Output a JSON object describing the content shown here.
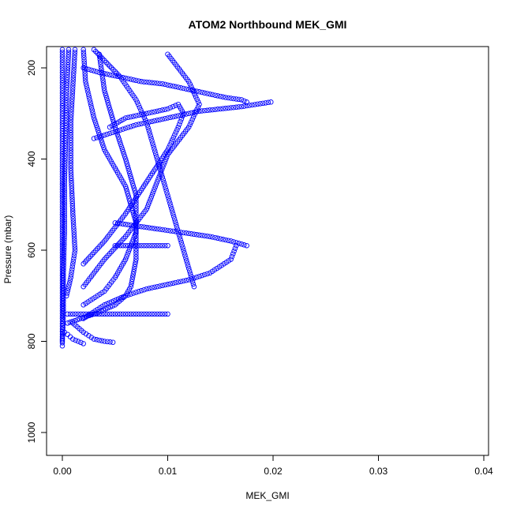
{
  "chart_data": {
    "type": "scatter",
    "title": "ATOM2 Northbound MEK_GMI",
    "xlabel": "MEK_GMI",
    "ylabel": "Pressure (mbar)",
    "xlim": [
      0.0,
      0.04
    ],
    "ylim": [
      1045,
      160
    ],
    "y_inverted": true,
    "x_ticks": [
      0.0,
      0.01,
      0.02,
      0.03,
      0.04
    ],
    "x_tick_labels": [
      "0.00",
      "0.01",
      "0.02",
      "0.03",
      "0.04"
    ],
    "y_ticks": [
      200,
      400,
      600,
      800,
      1000
    ],
    "y_tick_labels": [
      "200",
      "400",
      "600",
      "800",
      "1000"
    ],
    "grid": false,
    "legend": "none",
    "marker": "open-circle",
    "color": "#0000ff",
    "series": [
      {
        "x": [
          0.0,
          0.0,
          0.0,
          0.0,
          0.0,
          0.0,
          0.0,
          0.0,
          0.0,
          0.0
        ],
        "y": [
          160,
          250,
          350,
          450,
          550,
          650,
          700,
          750,
          790,
          810
        ]
      },
      {
        "x": [
          0.0006,
          0.0004,
          0.0003,
          0.0002,
          0.0002,
          0.0001,
          0.0001,
          0.0
        ],
        "y": [
          160,
          260,
          360,
          460,
          560,
          650,
          740,
          800
        ]
      },
      {
        "x": [
          0.0012,
          0.001,
          0.0008,
          0.0008,
          0.001,
          0.0012,
          0.0008,
          0.0004
        ],
        "y": [
          160,
          240,
          320,
          420,
          520,
          600,
          660,
          700
        ]
      },
      {
        "x": [
          0.002,
          0.0022,
          0.003,
          0.004,
          0.006,
          0.007,
          0.007,
          0.0065,
          0.006,
          0.005,
          0.003,
          0.0005
        ],
        "y": [
          160,
          230,
          310,
          380,
          460,
          540,
          620,
          680,
          700,
          720,
          740,
          760
        ]
      },
      {
        "x": [
          0.0035,
          0.004,
          0.005,
          0.006,
          0.007,
          0.007,
          0.006,
          0.005,
          0.004,
          0.002
        ],
        "y": [
          170,
          250,
          330,
          400,
          480,
          560,
          620,
          660,
          690,
          720
        ]
      },
      {
        "x": [
          0.003,
          0.0055,
          0.007,
          0.008,
          0.0085,
          0.009,
          0.0095,
          0.01,
          0.0105,
          0.011,
          0.0115,
          0.012,
          0.0125
        ],
        "y": [
          160,
          220,
          270,
          320,
          360,
          400,
          440,
          480,
          520,
          560,
          600,
          640,
          680
        ]
      },
      {
        "x": [
          0.01,
          0.012,
          0.013,
          0.012,
          0.01,
          0.009,
          0.008,
          0.006,
          0.004,
          0.002
        ],
        "y": [
          170,
          230,
          280,
          330,
          390,
          450,
          510,
          570,
          620,
          680
        ]
      },
      {
        "x": [
          0.0045,
          0.006,
          0.008,
          0.01,
          0.011,
          0.0115,
          0.011,
          0.01,
          0.008,
          0.006,
          0.004,
          0.002
        ],
        "y": [
          330,
          310,
          300,
          290,
          280,
          300,
          330,
          380,
          450,
          520,
          580,
          630
        ]
      },
      {
        "x": [
          0.002,
          0.0035,
          0.0055,
          0.0075,
          0.0095,
          0.0115,
          0.0135,
          0.0155,
          0.017,
          0.0175
        ],
        "y": [
          200,
          210,
          220,
          230,
          235,
          245,
          255,
          265,
          270,
          275
        ]
      },
      {
        "x": [
          0.003,
          0.005,
          0.007,
          0.009,
          0.011,
          0.013,
          0.015,
          0.017,
          0.0198
        ],
        "y": [
          355,
          340,
          325,
          315,
          305,
          295,
          290,
          285,
          275
        ]
      },
      {
        "x": [
          0.005,
          0.008,
          0.011,
          0.014,
          0.016,
          0.0175
        ],
        "y": [
          540,
          550,
          560,
          570,
          580,
          590
        ]
      },
      {
        "x": [
          0.0165,
          0.016,
          0.014,
          0.012,
          0.01,
          0.008,
          0.006,
          0.004,
          0.002
        ],
        "y": [
          590,
          620,
          650,
          665,
          675,
          685,
          700,
          720,
          750
        ]
      },
      {
        "x": [
          0.005,
          0.006,
          0.007,
          0.008,
          0.009,
          0.01
        ],
        "y": [
          590,
          590,
          590,
          590,
          590,
          590
        ]
      },
      {
        "x": [
          0.0005,
          0.002,
          0.004,
          0.006,
          0.008,
          0.01
        ],
        "y": [
          740,
          740,
          740,
          740,
          740,
          740
        ]
      },
      {
        "x": [
          0.001,
          0.002,
          0.003,
          0.004,
          0.0048
        ],
        "y": [
          760,
          780,
          795,
          800,
          802
        ]
      },
      {
        "x": [
          0.0002,
          0.0005,
          0.001,
          0.0015,
          0.002
        ],
        "y": [
          780,
          785,
          795,
          800,
          805
        ]
      }
    ]
  }
}
